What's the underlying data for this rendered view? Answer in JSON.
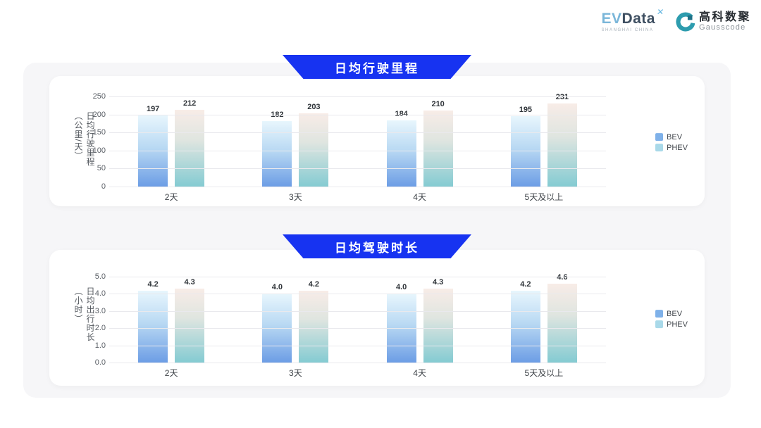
{
  "header": {
    "evdata_logo": {
      "ev": "EV",
      "data": "Data",
      "mark": "✕",
      "tagline": "SHANGHAI CHINA"
    },
    "gausscode_logo": {
      "name_cn": "高科数聚",
      "name_en": "Gausscode"
    }
  },
  "chart_data": [
    {
      "type": "bar",
      "title": "日均行驶里程",
      "ylabel": "日均行驶里程（公里/天）",
      "xlabel": "",
      "ylim": [
        0,
        250
      ],
      "y_ticks": [
        "250",
        "200",
        "150",
        "100",
        "50",
        "0"
      ],
      "categories": [
        "2天",
        "3天",
        "4天",
        "5天及以上"
      ],
      "series": [
        {
          "name": "BEV",
          "values": [
            197,
            182,
            184,
            195
          ],
          "value_labels": [
            "197",
            "182",
            "184",
            "195"
          ],
          "color": "#7fb1e9"
        },
        {
          "name": "PHEV",
          "values": [
            212,
            203,
            210,
            231
          ],
          "value_labels": [
            "212",
            "203",
            "210",
            "231"
          ],
          "color": "#a9d9e9"
        }
      ],
      "grid": true,
      "legend_position": "right",
      "banner_color": "#1733f1"
    },
    {
      "type": "bar",
      "title": "日均驾驶时长",
      "ylabel": "日均出行时长（小时）",
      "xlabel": "",
      "ylim": [
        0,
        5
      ],
      "y_ticks": [
        "5.0",
        "4.0",
        "3.0",
        "2.0",
        "1.0",
        "0.0"
      ],
      "categories": [
        "2天",
        "3天",
        "4天",
        "5天及以上"
      ],
      "series": [
        {
          "name": "BEV",
          "values": [
            4.2,
            4.0,
            4.0,
            4.2
          ],
          "value_labels": [
            "4.2",
            "4.0",
            "4.0",
            "4.2"
          ],
          "color": "#7fb1e9"
        },
        {
          "name": "PHEV",
          "values": [
            4.3,
            4.2,
            4.3,
            4.6
          ],
          "value_labels": [
            "4.3",
            "4.2",
            "4.3",
            "4.6"
          ],
          "color": "#a9d9e9"
        }
      ],
      "grid": true,
      "legend_position": "right",
      "banner_color": "#1733f1"
    }
  ]
}
